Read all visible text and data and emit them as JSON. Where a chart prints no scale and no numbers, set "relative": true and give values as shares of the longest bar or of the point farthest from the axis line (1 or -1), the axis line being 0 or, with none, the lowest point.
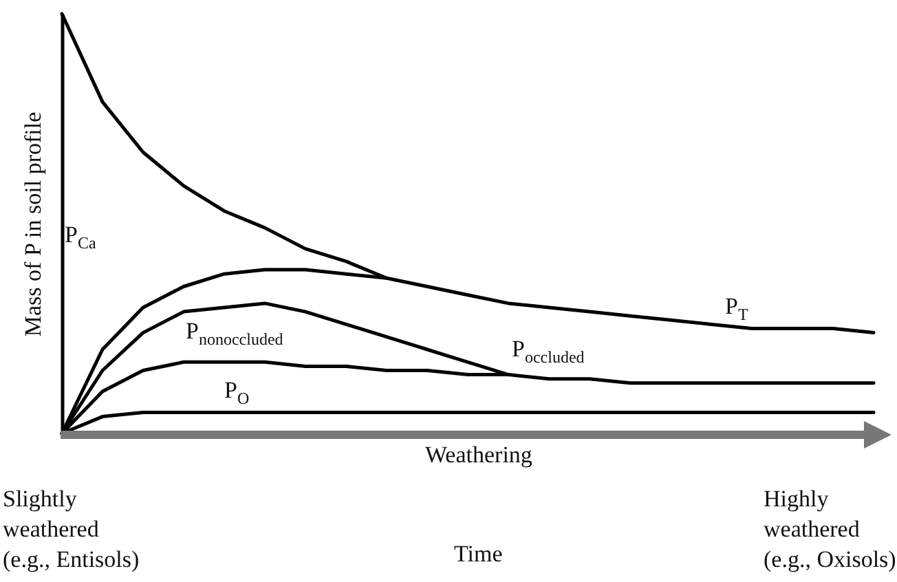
{
  "chart_data": {
    "type": "line",
    "relative": true,
    "ylabel": "Mass of P in soil profile",
    "xlabel": "Time",
    "categories": [
      null,
      null,
      null,
      null,
      null,
      null,
      null,
      null,
      null,
      null,
      null,
      null,
      null,
      null,
      null,
      null,
      null,
      null,
      null,
      null,
      null
    ],
    "series": [
      {
        "color": "#000000",
        "values": [
          1.0,
          0.79,
          0.67,
          0.59,
          0.53,
          0.49,
          0.44,
          0.41,
          0.37,
          0.35,
          0.33,
          0.31,
          0.3,
          0.29,
          0.28,
          0.27,
          0.26,
          0.25,
          0.25,
          0.25,
          0.24
        ]
      },
      {
        "color": "#000000",
        "values": [
          0,
          0.2,
          0.3,
          0.35,
          0.38,
          0.39,
          0.39,
          0.38,
          0.37,
          null,
          null,
          null,
          null,
          null,
          null,
          null,
          null,
          null,
          null,
          null,
          null
        ]
      },
      {
        "color": "#000000",
        "values": [
          0,
          0.15,
          0.24,
          0.29,
          0.3,
          0.31,
          0.29,
          0.26,
          0.23,
          0.2,
          0.17,
          0.14,
          null,
          null,
          null,
          null,
          null,
          null,
          null,
          null,
          null
        ]
      },
      {
        "color": "#000000",
        "values": [
          0,
          0.1,
          0.15,
          0.17,
          0.17,
          0.17,
          0.16,
          0.16,
          0.15,
          0.15,
          0.14,
          0.14,
          0.13,
          0.13,
          0.12,
          0.12,
          0.12,
          0.12,
          0.12,
          0.12,
          0.12
        ]
      },
      {
        "color": "#000000",
        "values": [
          0,
          0.04,
          0.05,
          0.05,
          0.05,
          0.05,
          0.05,
          0.05,
          0.05,
          0.05,
          0.05,
          0.05,
          0.05,
          0.05,
          0.05,
          0.05,
          0.05,
          0.05,
          0.05,
          0.05,
          0.05
        ]
      }
    ],
    "annotations": [
      "P$_{Ca}$",
      "P$_{nonoccluded}$",
      "P$_{occluded}$",
      "P$_{T}$",
      "P$_{O}$",
      "Weathering",
      "Slightly\nweathered\n(e.g., Entisols)",
      "Highly\nweathered\n(e.g., Oxisols)"
    ],
    "grid": false,
    "marker": "none",
    "line_style": "solid"
  }
}
